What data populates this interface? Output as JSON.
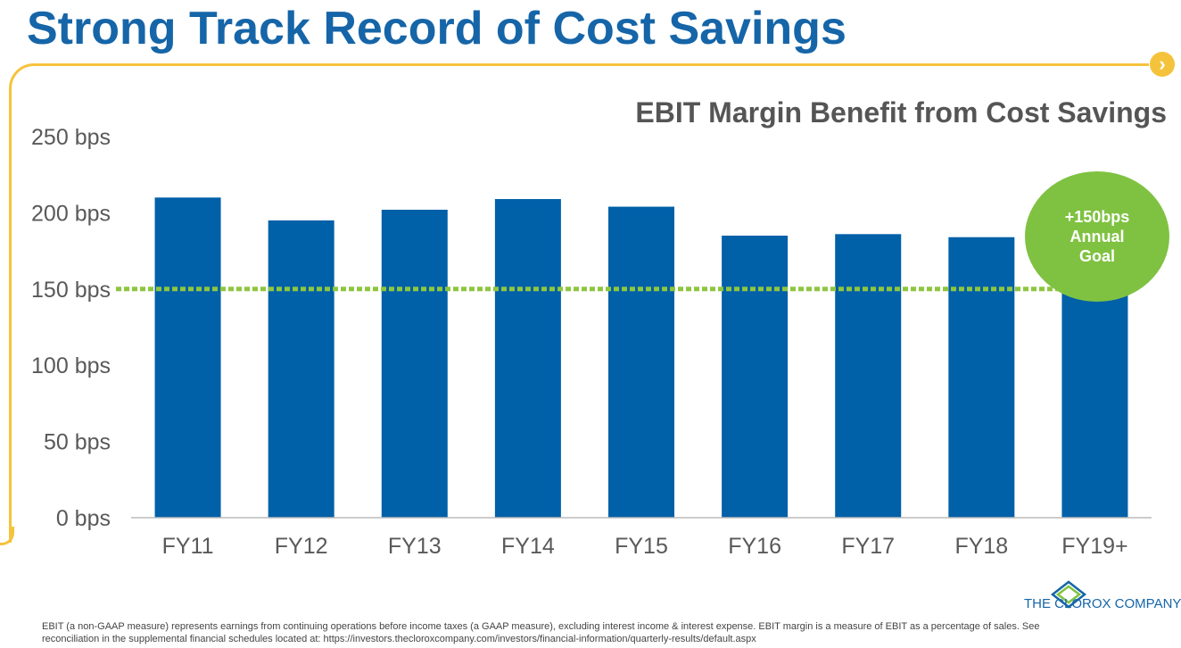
{
  "slide": {
    "title": "Strong Track Record of Cost Savings",
    "nav_icon": "chevron-right-icon"
  },
  "badge": {
    "line1": "+150bps",
    "line2": "Annual",
    "line3": "Goal"
  },
  "logo": {
    "text": "THE CLOROX COMPANY"
  },
  "footnote": "EBIT (a non-GAAP measure) represents earnings from continuing operations before income taxes (a GAAP measure), excluding interest income & interest expense.  EBIT margin is a measure of EBIT as a percentage of sales. See reconciliation in the supplemental financial schedules located at: https://investors.thecloroxcompany.com/investors/financial-information/quarterly-results/default.aspx",
  "colors": {
    "bar": "#0060a8",
    "goal_line": "#8dc63f",
    "badge": "#7fc241",
    "accent": "#f5c33b",
    "title": "#1565a8"
  },
  "chart_data": {
    "type": "bar",
    "title": "EBIT Margin Benefit from Cost Savings",
    "categories": [
      "FY11",
      "FY12",
      "FY13",
      "FY14",
      "FY15",
      "FY16",
      "FY17",
      "FY18",
      "FY19+"
    ],
    "values": [
      210,
      195,
      202,
      209,
      204,
      185,
      186,
      184,
      150
    ],
    "yticks": [
      "0 bps",
      "50 bps",
      "100 bps",
      "150 bps",
      "200 bps",
      "250 bps"
    ],
    "ytick_values": [
      0,
      50,
      100,
      150,
      200,
      250
    ],
    "ylim": [
      0,
      250
    ],
    "reference_line": {
      "value": 150,
      "style": "dotted"
    },
    "grid": false,
    "legend": "none"
  }
}
